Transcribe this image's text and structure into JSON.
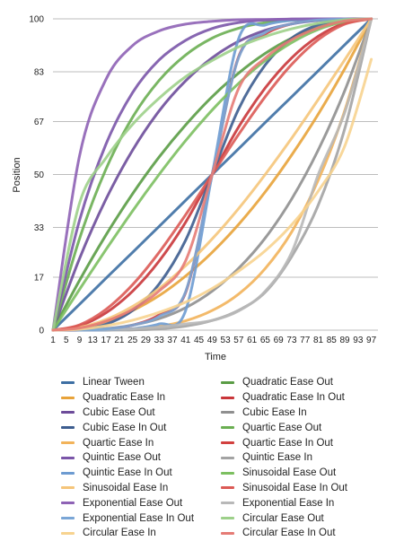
{
  "chart_data": {
    "type": "line",
    "title": "",
    "xlabel": "Time",
    "ylabel": "Position",
    "xlim": [
      1,
      99
    ],
    "ylim": [
      0,
      100
    ],
    "y_ticks": [
      0,
      17,
      33,
      50,
      67,
      83,
      100
    ],
    "x_ticks": [
      1,
      5,
      9,
      13,
      17,
      21,
      25,
      29,
      33,
      37,
      41,
      45,
      49,
      53,
      57,
      61,
      65,
      69,
      73,
      77,
      81,
      85,
      89,
      93,
      97
    ],
    "grid": "horizontal",
    "legend_position": "bottom",
    "series": [
      {
        "name": "Linear Tween",
        "color": "#3d6fa3",
        "x": [
          1,
          9,
          17,
          25,
          33,
          41,
          49,
          57,
          65,
          73,
          81,
          89,
          97
        ],
        "values": [
          0,
          8.3,
          16.7,
          25,
          33.3,
          41.7,
          50,
          58.3,
          66.7,
          75,
          83.3,
          91.7,
          100
        ]
      },
      {
        "name": "Quadratic Ease Out",
        "color": "#5a9c45",
        "x": [
          1,
          9,
          17,
          25,
          33,
          41,
          49,
          57,
          65,
          73,
          81,
          89,
          97
        ],
        "values": [
          0,
          16,
          30.6,
          43.8,
          55.6,
          65.9,
          75,
          82.6,
          88.9,
          93.8,
          97.2,
          99.3,
          100
        ]
      },
      {
        "name": "Quadratic Ease In",
        "color": "#e8a33a",
        "x": [
          1,
          9,
          17,
          25,
          33,
          41,
          49,
          57,
          65,
          73,
          81,
          89,
          97
        ],
        "values": [
          0,
          0.7,
          2.8,
          6.3,
          11.1,
          17.4,
          25,
          34,
          44.4,
          56.3,
          69.4,
          84,
          100
        ]
      },
      {
        "name": "Quadratic Ease In Out",
        "color": "#c9363a",
        "x": [
          1,
          9,
          17,
          25,
          33,
          41,
          49,
          57,
          65,
          73,
          81,
          89,
          97
        ],
        "values": [
          0,
          1.4,
          5.6,
          12.5,
          22.2,
          34.7,
          50,
          65.3,
          77.8,
          87.5,
          94.4,
          98.6,
          100
        ]
      },
      {
        "name": "Cubic Ease Out",
        "color": "#6d4c9a",
        "x": [
          1,
          9,
          17,
          25,
          33,
          41,
          49,
          57,
          65,
          73,
          81,
          89,
          97
        ],
        "values": [
          0,
          23,
          42.1,
          57.8,
          70.4,
          80.1,
          87.5,
          92.8,
          96.3,
          98.4,
          99.5,
          99.9,
          100
        ]
      },
      {
        "name": "Cubic Ease In",
        "color": "#8f8f8f",
        "x": [
          1,
          9,
          17,
          25,
          33,
          41,
          49,
          57,
          65,
          73,
          81,
          89,
          97
        ],
        "values": [
          0,
          0.1,
          0.5,
          1.6,
          3.7,
          7.2,
          12.5,
          19.9,
          29.6,
          42.2,
          57.9,
          77,
          100
        ]
      },
      {
        "name": "Cubic Ease In Out",
        "color": "#3d5d8f",
        "x": [
          1,
          9,
          17,
          25,
          33,
          41,
          49,
          57,
          65,
          73,
          81,
          89,
          97
        ],
        "values": [
          0,
          0.2,
          1.9,
          6.3,
          14.8,
          28.9,
          50,
          71.1,
          85.2,
          93.8,
          98.1,
          99.8,
          100
        ]
      },
      {
        "name": "Quartic Ease Out",
        "color": "#6aae52",
        "x": [
          1,
          9,
          17,
          25,
          33,
          41,
          49,
          57,
          65,
          73,
          81,
          89,
          97
        ],
        "values": [
          0,
          29.4,
          51.8,
          68.4,
          80.2,
          88.4,
          93.8,
          97,
          98.8,
          99.6,
          99.9,
          100,
          100
        ]
      },
      {
        "name": "Quartic Ease In",
        "color": "#f2b35a",
        "x": [
          1,
          9,
          17,
          25,
          33,
          41,
          49,
          57,
          65,
          73,
          81,
          89,
          97
        ],
        "values": [
          0,
          0,
          0.1,
          0.4,
          1.2,
          3,
          6.3,
          11.6,
          19.8,
          31.6,
          48.2,
          70.6,
          100
        ]
      },
      {
        "name": "Quartic Ease In Out",
        "color": "#d2403e",
        "x": [
          1,
          9,
          17,
          25,
          33,
          41,
          49,
          57,
          65,
          73,
          81,
          89,
          97
        ],
        "values": [
          0,
          0,
          0.3,
          1.6,
          4.9,
          12.1,
          50,
          87.9,
          95.1,
          98.4,
          99.7,
          100,
          100
        ]
      },
      {
        "name": "Quintic Ease Out",
        "color": "#7a55a8",
        "x": [
          1,
          9,
          17,
          25,
          33,
          41,
          49,
          57,
          65,
          73,
          81,
          89,
          97
        ],
        "values": [
          0,
          35.3,
          59.8,
          76.3,
          86.8,
          93.1,
          96.9,
          98.8,
          99.6,
          99.9,
          100,
          100,
          100
        ]
      },
      {
        "name": "Quintic Ease In",
        "color": "#a3a3a3",
        "x": [
          1,
          9,
          17,
          25,
          33,
          41,
          49,
          57,
          65,
          73,
          81,
          89,
          97
        ],
        "values": [
          0,
          0,
          0,
          0.1,
          0.4,
          1.3,
          3.1,
          6.4,
          12.2,
          23.7,
          40.2,
          64.8,
          100
        ]
      },
      {
        "name": "Quintic Ease In Out",
        "color": "#6d9bd1",
        "x": [
          1,
          9,
          17,
          25,
          33,
          41,
          49,
          57,
          65,
          73,
          81,
          89,
          97
        ],
        "values": [
          0,
          0,
          0.1,
          0.5,
          2,
          6.3,
          50,
          93.7,
          98,
          99.5,
          99.9,
          100,
          100
        ]
      },
      {
        "name": "Sinusoidal Ease Out",
        "color": "#7cbf60",
        "x": [
          1,
          9,
          17,
          25,
          33,
          41,
          49,
          57,
          65,
          73,
          81,
          89,
          97
        ],
        "values": [
          0,
          13.1,
          25.9,
          38.3,
          50,
          60.9,
          70.7,
          79.3,
          86.6,
          92.4,
          96.6,
          99.1,
          100
        ]
      },
      {
        "name": "Sinusoidal Ease In",
        "color": "#f5c57a",
        "x": [
          1,
          9,
          17,
          25,
          33,
          41,
          49,
          57,
          65,
          73,
          81,
          89,
          97
        ],
        "values": [
          0,
          0.9,
          3.4,
          7.6,
          13.4,
          20.7,
          29.3,
          39.1,
          50,
          61.7,
          74.1,
          86.9,
          100
        ]
      },
      {
        "name": "Sinusoidal Ease In Out",
        "color": "#db5a55",
        "x": [
          1,
          9,
          17,
          25,
          33,
          41,
          49,
          57,
          65,
          73,
          81,
          89,
          97
        ],
        "values": [
          0,
          1.7,
          6.7,
          14.6,
          25,
          37.1,
          50,
          62.9,
          75,
          85.4,
          93.3,
          98.3,
          100
        ]
      },
      {
        "name": "Exponential Ease Out",
        "color": "#8e62b5",
        "x": [
          1,
          9,
          17,
          25,
          33,
          41,
          49,
          57,
          65,
          73,
          81,
          89,
          97
        ],
        "values": [
          0,
          56,
          80.6,
          91.4,
          96.1,
          98.3,
          99.2,
          99.7,
          99.8,
          99.9,
          100,
          100,
          100
        ]
      },
      {
        "name": "Exponential Ease In",
        "color": "#b8b8b8",
        "x": [
          1,
          9,
          17,
          25,
          33,
          41,
          49,
          57,
          65,
          73,
          81,
          89,
          97
        ],
        "values": [
          0,
          0.2,
          0.2,
          0.4,
          1,
          2,
          3.1,
          6.2,
          12.5,
          25,
          50,
          70,
          100
        ]
      },
      {
        "name": "Exponential Ease In Out",
        "color": "#7aa6d6",
        "x": [
          1,
          9,
          17,
          25,
          33,
          41,
          49,
          57,
          65,
          73,
          81,
          89,
          97
        ],
        "values": [
          0,
          0.1,
          0.4,
          1.6,
          4.4,
          12.4,
          50,
          87.6,
          95.6,
          98.4,
          99.6,
          99.9,
          100
        ]
      },
      {
        "name": "Circular Ease Out",
        "color": "#9dd08a",
        "x": [
          1,
          9,
          17,
          25,
          33,
          41,
          49,
          57,
          65,
          73,
          81,
          89,
          97
        ],
        "values": [
          0,
          40.8,
          55.3,
          66.1,
          74.5,
          81.4,
          86.6,
          91,
          94.3,
          96.8,
          98.6,
          99.7,
          100
        ]
      },
      {
        "name": "Circular Ease In",
        "color": "#f7d38f",
        "x": [
          1,
          9,
          17,
          25,
          33,
          41,
          49,
          57,
          65,
          73,
          81,
          89,
          97
        ],
        "values": [
          0,
          0.3,
          1.4,
          3.2,
          5.7,
          9,
          13.4,
          19,
          25.5,
          33.9,
          44.7,
          59.2,
          87
        ]
      },
      {
        "name": "Circular Ease In Out",
        "color": "#e57b75",
        "x": [
          1,
          9,
          17,
          25,
          33,
          41,
          49,
          57,
          65,
          73,
          81,
          89,
          97
        ],
        "values": [
          0,
          0.7,
          2.9,
          6.7,
          12.6,
          22.3,
          50,
          77.7,
          87.4,
          93.3,
          97.1,
          99.3,
          100
        ]
      }
    ]
  }
}
